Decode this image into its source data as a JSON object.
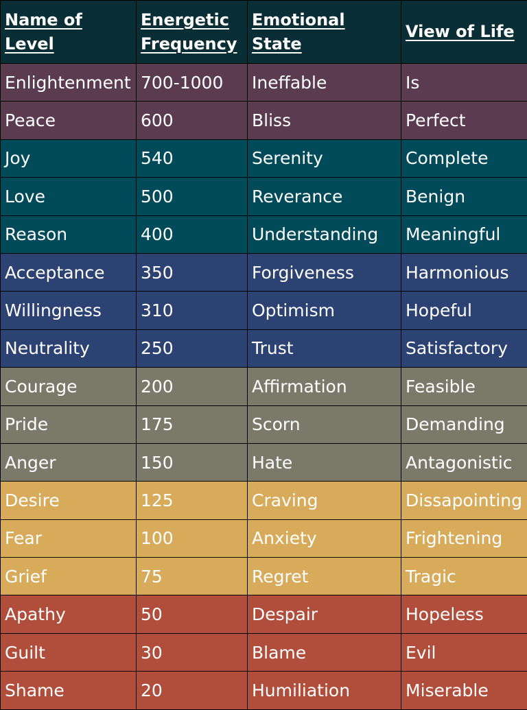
{
  "headers": {
    "name": "Name of Level",
    "frequency_line1": "Energetic",
    "frequency_line2": "Frequency",
    "emotion": "Emotional State",
    "view": "View of Life"
  },
  "row_colors": {
    "plum": "#5a3b50",
    "teal": "#014a59",
    "navy": "#2c4272",
    "olive": "#7a796a",
    "gold": "#d8ab5b",
    "rust": "#b04d3b"
  },
  "rows": [
    {
      "level": "Enlightenment",
      "frequency": "700-1000",
      "emotion": "Ineffable",
      "view": "Is",
      "color": "plum"
    },
    {
      "level": "Peace",
      "frequency": "600",
      "emotion": "Bliss",
      "view": "Perfect",
      "color": "plum"
    },
    {
      "level": "Joy",
      "frequency": "540",
      "emotion": "Serenity",
      "view": "Complete",
      "color": "teal"
    },
    {
      "level": "Love",
      "frequency": "500",
      "emotion": "Reverance",
      "view": "Benign",
      "color": "teal"
    },
    {
      "level": "Reason",
      "frequency": "400",
      "emotion": "Understanding",
      "view": "Meaningful",
      "color": "teal"
    },
    {
      "level": "Acceptance",
      "frequency": "350",
      "emotion": "Forgiveness",
      "view": "Harmonious",
      "color": "navy"
    },
    {
      "level": "Willingness",
      "frequency": "310",
      "emotion": "Optimism",
      "view": "Hopeful",
      "color": "navy"
    },
    {
      "level": "Neutrality",
      "frequency": "250",
      "emotion": "Trust",
      "view": "Satisfactory",
      "color": "navy"
    },
    {
      "level": "Courage",
      "frequency": "200",
      "emotion": "Affirmation",
      "view": "Feasible",
      "color": "olive"
    },
    {
      "level": "Pride",
      "frequency": "175",
      "emotion": "Scorn",
      "view": "Demanding",
      "color": "olive"
    },
    {
      "level": "Anger",
      "frequency": "150",
      "emotion": "Hate",
      "view": "Antagonistic",
      "color": "olive"
    },
    {
      "level": "Desire",
      "frequency": "125",
      "emotion": "Craving",
      "view": "Dissapointing",
      "color": "gold"
    },
    {
      "level": "Fear",
      "frequency": "100",
      "emotion": "Anxiety",
      "view": "Frightening",
      "color": "gold"
    },
    {
      "level": "Grief",
      "frequency": "75",
      "emotion": "Regret",
      "view": "Tragic",
      "color": "gold"
    },
    {
      "level": "Apathy",
      "frequency": "50",
      "emotion": "Despair",
      "view": "Hopeless",
      "color": "rust"
    },
    {
      "level": "Guilt",
      "frequency": "30",
      "emotion": "Blame",
      "view": "Evil",
      "color": "rust"
    },
    {
      "level": "Shame",
      "frequency": "20",
      "emotion": "Humiliation",
      "view": "Miserable",
      "color": "rust"
    }
  ]
}
